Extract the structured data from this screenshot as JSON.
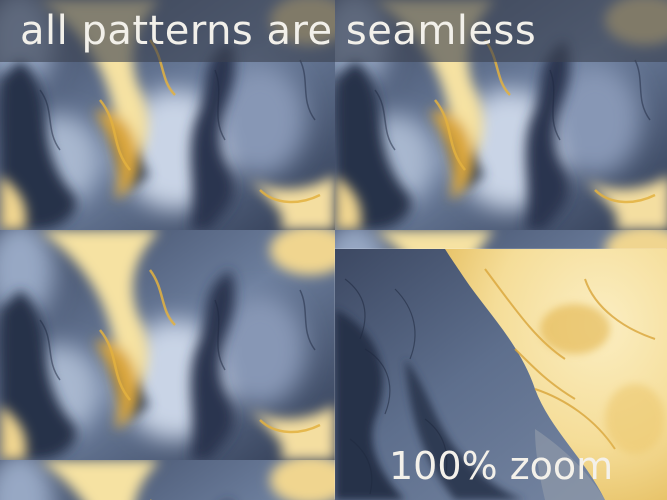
{
  "header": {
    "text": "all patterns are seamless"
  },
  "zoom": {
    "label": "100% zoom"
  },
  "colors": {
    "slate_dark": "#2c3750",
    "slate_mid": "#5b6d8c",
    "slate_light": "#b9c6db",
    "cloud": "#dfe6f0",
    "gold": "#d6a53a",
    "cream": "#f8e8ad",
    "amber": "#e0b54a"
  }
}
